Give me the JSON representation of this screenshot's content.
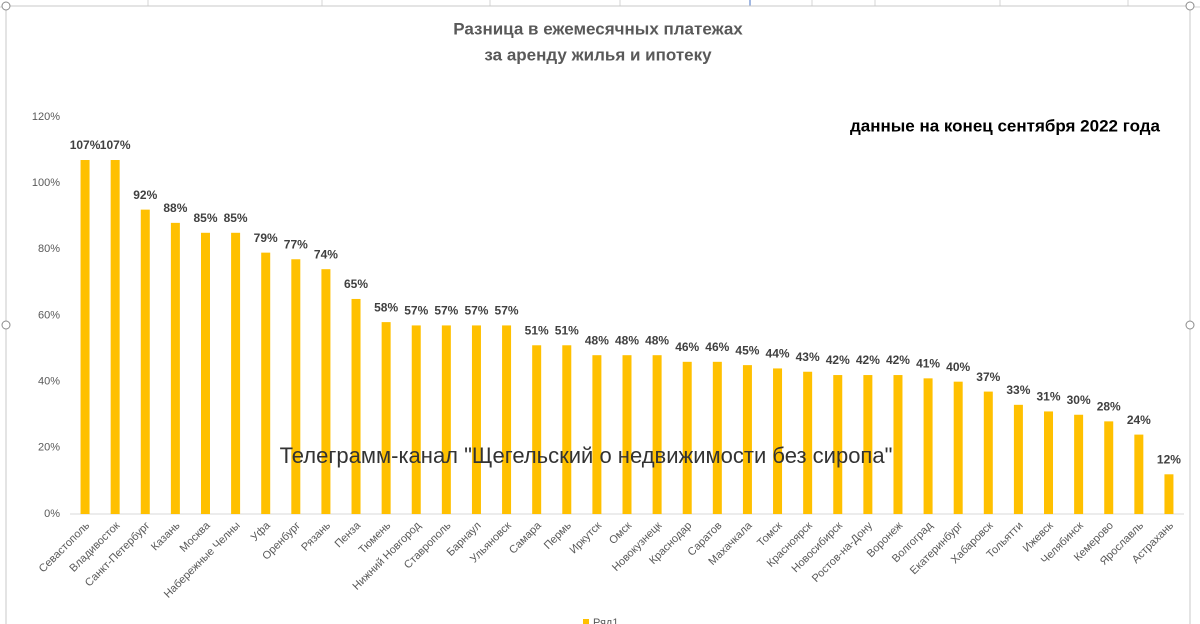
{
  "chart_data": {
    "type": "bar",
    "title": [
      "Разница в ежемесячных платежах",
      "за аренду жилья и ипотеку"
    ],
    "annotation": "данные на конец сентября 2022 года",
    "watermark": "Телеграмм-канал \"Щегельский о недвижимости без сиропа\"",
    "categories": [
      "Севастополь",
      "Владивосток",
      "Санкт-Петербург",
      "Казань",
      "Москва",
      "Набережные Челны",
      "Уфа",
      "Оренбург",
      "Рязань",
      "Пенза",
      "Тюмень",
      "Нижний Новгород",
      "Ставрополь",
      "Барнаул",
      "Ульяновск",
      "Самара",
      "Пермь",
      "Иркутск",
      "Омск",
      "Новокузнецк",
      "Краснодар",
      "Саратов",
      "Махачкала",
      "Томск",
      "Красноярск",
      "Новосибирск",
      "Ростов-на-Дону",
      "Воронеж",
      "Волгоград",
      "Екатеринбург",
      "Хабаровск",
      "Тольятти",
      "Ижевск",
      "Челябинск",
      "Кемерово",
      "Ярославль",
      "Астрахань"
    ],
    "series": [
      {
        "name": "Ряд1",
        "color": "#FFC000",
        "values": [
          107,
          107,
          92,
          88,
          85,
          85,
          79,
          77,
          74,
          65,
          58,
          57,
          57,
          57,
          57,
          51,
          51,
          48,
          48,
          48,
          46,
          46,
          45,
          44,
          43,
          42,
          42,
          42,
          41,
          40,
          37,
          33,
          31,
          30,
          28,
          24,
          12
        ],
        "value_labels": [
          "107%",
          "107%",
          "92%",
          "88%",
          "85%",
          "85%",
          "79%",
          "77%",
          "74%",
          "65%",
          "58%",
          "57%",
          "57%",
          "57%",
          "57%",
          "51%",
          "51%",
          "48%",
          "48%",
          "48%",
          "46%",
          "46%",
          "45%",
          "44%",
          "43%",
          "42%",
          "42%",
          "42%",
          "41%",
          "40%",
          "37%",
          "33%",
          "31%",
          "30%",
          "28%",
          "24%",
          "12%"
        ]
      }
    ],
    "ylim": [
      0,
      120
    ],
    "yticks": [
      {
        "value": 0,
        "label": "0%"
      },
      {
        "value": 20,
        "label": "20%"
      },
      {
        "value": 40,
        "label": "40%"
      },
      {
        "value": 60,
        "label": "60%"
      },
      {
        "value": 80,
        "label": "80%"
      },
      {
        "value": 100,
        "label": "100%"
      },
      {
        "value": 120,
        "label": "120%"
      }
    ],
    "grid": false,
    "legend": "bottom"
  }
}
